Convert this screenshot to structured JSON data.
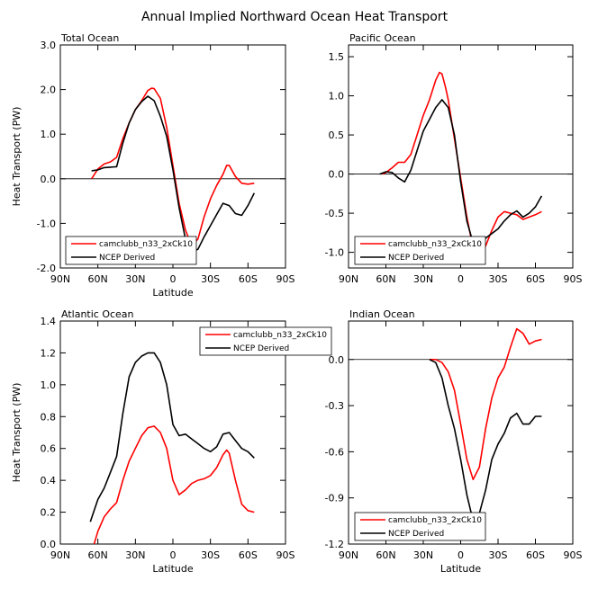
{
  "figure_title": "Annual Implied Northward Ocean Heat Transport",
  "colors": {
    "model": "#ff0000",
    "obs": "#000000",
    "zero_line": "#000000"
  },
  "chart_data": [
    {
      "type": "line",
      "panel_title": "Total Ocean",
      "xlabel": "Latitude",
      "ylabel": "Heat Transport (PW)",
      "xlim": [
        90,
        -90
      ],
      "x_ticks": [
        90,
        60,
        30,
        0,
        -30,
        -60,
        -90
      ],
      "x_tick_labels": [
        "90N",
        "60N",
        "30N",
        "0",
        "30S",
        "60S",
        "90S"
      ],
      "ylim": [
        -2.0,
        3.0
      ],
      "y_ticks": [
        -2.0,
        -1.0,
        0.0,
        1.0,
        2.0,
        3.0
      ],
      "y_tick_labels": [
        "-2.0",
        "-1.0",
        "0.0",
        "1.0",
        "2.0",
        "3.0"
      ],
      "zero_line": true,
      "legend_position": "bottom-left",
      "series": [
        {
          "name": "camclubb_n33_2xCk10",
          "color": "#ff0000",
          "x": [
            65,
            60,
            55,
            50,
            45,
            40,
            35,
            30,
            25,
            20,
            17,
            15,
            10,
            5,
            0,
            -5,
            -10,
            -15,
            -20,
            -25,
            -30,
            -35,
            -40,
            -43,
            -45,
            -50,
            -55,
            -60,
            -65
          ],
          "y": [
            0.0,
            0.22,
            0.33,
            0.38,
            0.48,
            0.9,
            1.25,
            1.55,
            1.75,
            1.98,
            2.03,
            2.02,
            1.8,
            1.15,
            0.3,
            -0.55,
            -1.15,
            -1.5,
            -1.35,
            -0.85,
            -0.45,
            -0.15,
            0.1,
            0.3,
            0.3,
            0.05,
            -0.1,
            -0.12,
            -0.1
          ]
        },
        {
          "name": "NCEP Derived",
          "color": "#000000",
          "x": [
            65,
            60,
            55,
            50,
            45,
            40,
            35,
            30,
            25,
            20,
            15,
            10,
            5,
            0,
            -5,
            -10,
            -15,
            -20,
            -25,
            -30,
            -35,
            -40,
            -45,
            -50,
            -55,
            -60,
            -65
          ],
          "y": [
            0.18,
            0.2,
            0.25,
            0.26,
            0.27,
            0.8,
            1.25,
            1.55,
            1.73,
            1.85,
            1.75,
            1.4,
            0.95,
            0.2,
            -0.65,
            -1.35,
            -1.63,
            -1.58,
            -1.3,
            -1.05,
            -0.8,
            -0.55,
            -0.6,
            -0.78,
            -0.82,
            -0.6,
            -0.32
          ]
        }
      ]
    },
    {
      "type": "line",
      "panel_title": "Pacific Ocean",
      "xlabel": "",
      "ylabel": "",
      "xlim": [
        90,
        -90
      ],
      "x_ticks": [
        90,
        60,
        30,
        0,
        -30,
        -60,
        -90
      ],
      "x_tick_labels": [
        "90N",
        "60N",
        "30N",
        "0",
        "30S",
        "60S",
        "90S"
      ],
      "ylim": [
        -1.2,
        1.65
      ],
      "y_ticks": [
        -1.0,
        -0.5,
        0.0,
        0.5,
        1.0,
        1.5
      ],
      "y_tick_labels": [
        "-1.0",
        "-0.5",
        "0.0",
        "0.5",
        "1.0",
        "1.5"
      ],
      "zero_line": true,
      "legend_position": "bottom-left",
      "series": [
        {
          "name": "camclubb_n33_2xCk10",
          "color": "#ff0000",
          "x": [
            63,
            60,
            55,
            50,
            45,
            40,
            35,
            30,
            25,
            20,
            17,
            15,
            12,
            10,
            5,
            0,
            -5,
            -10,
            -15,
            -20,
            -25,
            -30,
            -35,
            -40,
            -45,
            -50,
            -55,
            -60,
            -65
          ],
          "y": [
            0.0,
            0.02,
            0.08,
            0.15,
            0.15,
            0.25,
            0.5,
            0.75,
            0.95,
            1.2,
            1.3,
            1.28,
            1.1,
            0.95,
            0.45,
            -0.05,
            -0.55,
            -0.95,
            -1.02,
            -0.92,
            -0.72,
            -0.55,
            -0.48,
            -0.5,
            -0.52,
            -0.58,
            -0.55,
            -0.52,
            -0.48
          ]
        },
        {
          "name": "NCEP Derived",
          "color": "#000000",
          "x": [
            65,
            60,
            55,
            50,
            45,
            40,
            35,
            30,
            25,
            20,
            15,
            10,
            5,
            0,
            -5,
            -10,
            -15,
            -20,
            -25,
            -30,
            -35,
            -40,
            -45,
            -50,
            -55,
            -60,
            -65
          ],
          "y": [
            0.0,
            0.03,
            0.02,
            -0.05,
            -0.1,
            0.05,
            0.3,
            0.55,
            0.7,
            0.85,
            0.95,
            0.85,
            0.5,
            -0.1,
            -0.6,
            -0.88,
            -0.88,
            -0.82,
            -0.76,
            -0.7,
            -0.6,
            -0.52,
            -0.47,
            -0.55,
            -0.5,
            -0.42,
            -0.28
          ]
        }
      ]
    },
    {
      "type": "line",
      "panel_title": "Atlantic Ocean",
      "xlabel": "Latitude",
      "ylabel": "Heat Transport (PW)",
      "xlim": [
        90,
        -90
      ],
      "x_ticks": [
        90,
        60,
        30,
        0,
        -30,
        -60,
        -90
      ],
      "x_tick_labels": [
        "90N",
        "60N",
        "30N",
        "0",
        "30S",
        "60S",
        "90S"
      ],
      "ylim": [
        0.0,
        1.4
      ],
      "y_ticks": [
        0.0,
        0.2,
        0.4,
        0.6,
        0.8,
        1.0,
        1.2,
        1.4
      ],
      "y_tick_labels": [
        "0.0",
        "0.2",
        "0.4",
        "0.6",
        "0.8",
        "1.0",
        "1.2",
        "1.4"
      ],
      "zero_line": false,
      "legend_position": "top-right",
      "series": [
        {
          "name": "camclubb_n33_2xCk10",
          "color": "#ff0000",
          "x": [
            63,
            60,
            55,
            50,
            45,
            40,
            35,
            30,
            25,
            20,
            15,
            10,
            5,
            0,
            -5,
            -10,
            -15,
            -20,
            -25,
            -30,
            -35,
            -40,
            -43,
            -45,
            -50,
            -55,
            -60,
            -65
          ],
          "y": [
            0.0,
            0.08,
            0.17,
            0.22,
            0.26,
            0.4,
            0.52,
            0.6,
            0.68,
            0.73,
            0.74,
            0.7,
            0.6,
            0.4,
            0.31,
            0.34,
            0.38,
            0.4,
            0.41,
            0.43,
            0.48,
            0.56,
            0.59,
            0.57,
            0.4,
            0.25,
            0.21,
            0.2
          ]
        },
        {
          "name": "NCEP Derived",
          "color": "#000000",
          "x": [
            66,
            60,
            55,
            50,
            45,
            40,
            35,
            30,
            25,
            20,
            15,
            10,
            5,
            0,
            -5,
            -10,
            -15,
            -20,
            -25,
            -30,
            -35,
            -40,
            -45,
            -50,
            -55,
            -60,
            -65
          ],
          "y": [
            0.14,
            0.28,
            0.35,
            0.45,
            0.55,
            0.82,
            1.05,
            1.14,
            1.18,
            1.2,
            1.2,
            1.14,
            1.0,
            0.75,
            0.68,
            0.69,
            0.66,
            0.63,
            0.6,
            0.58,
            0.61,
            0.69,
            0.7,
            0.65,
            0.6,
            0.58,
            0.54
          ]
        }
      ]
    },
    {
      "type": "line",
      "panel_title": "Indian Ocean",
      "xlabel": "Latitude",
      "ylabel": "",
      "xlim": [
        90,
        -90
      ],
      "x_ticks": [
        90,
        60,
        30,
        0,
        -30,
        -60,
        -90
      ],
      "x_tick_labels": [
        "90N",
        "60N",
        "30N",
        "0",
        "30S",
        "60S",
        "90S"
      ],
      "ylim": [
        -1.2,
        0.25
      ],
      "y_ticks": [
        -1.2,
        -0.9,
        -0.6,
        -0.3,
        0.0
      ],
      "y_tick_labels": [
        "-1.2",
        "-0.9",
        "-0.6",
        "-0.3",
        "0.0"
      ],
      "zero_line": true,
      "legend_position": "bottom-left",
      "series": [
        {
          "name": "camclubb_n33_2xCk10",
          "color": "#ff0000",
          "x": [
            25,
            20,
            15,
            10,
            5,
            0,
            -5,
            -10,
            -15,
            -20,
            -25,
            -30,
            -35,
            -40,
            -45,
            -50,
            -55,
            -60,
            -65
          ],
          "y": [
            0.0,
            0.0,
            -0.02,
            -0.08,
            -0.2,
            -0.42,
            -0.65,
            -0.78,
            -0.7,
            -0.45,
            -0.25,
            -0.12,
            -0.05,
            0.08,
            0.2,
            0.17,
            0.1,
            0.12,
            0.13
          ]
        },
        {
          "name": "NCEP Derived",
          "color": "#000000",
          "x": [
            25,
            20,
            15,
            10,
            5,
            0,
            -5,
            -10,
            -15,
            -20,
            -25,
            -30,
            -35,
            -40,
            -45,
            -50,
            -55,
            -60,
            -65
          ],
          "y": [
            0.0,
            -0.02,
            -0.12,
            -0.3,
            -0.45,
            -0.65,
            -0.88,
            -1.05,
            -1.0,
            -0.85,
            -0.65,
            -0.55,
            -0.48,
            -0.38,
            -0.35,
            -0.42,
            -0.42,
            -0.37,
            -0.37
          ]
        }
      ]
    }
  ]
}
